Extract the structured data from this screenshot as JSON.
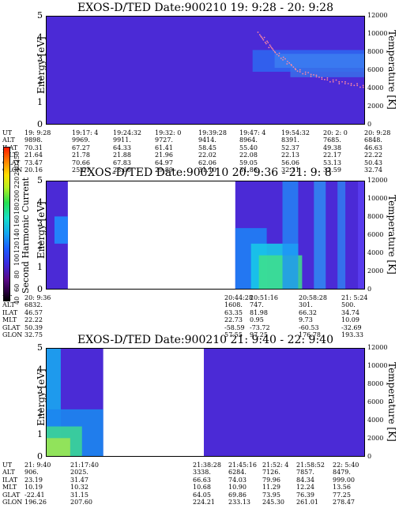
{
  "colorbar": {
    "label": "Second Harmonic Current",
    "ticks": [
      "40",
      "60",
      "80",
      "100",
      "120",
      "140",
      "160",
      "180",
      "200",
      "220",
      "240",
      "250"
    ]
  },
  "chart_data": [
    {
      "type": "heatmap",
      "title": "EXOS-D/TED   Date:900210  19: 9:28 - 20: 9:28",
      "ylabel": "Energy [eV]",
      "y2label": "Temperature [K]",
      "ylim": [
        0,
        5
      ],
      "y2lim": [
        0,
        12000
      ],
      "yticks": [
        "0",
        "1",
        "2",
        "3",
        "4",
        "5"
      ],
      "y2ticks": [
        "0",
        "2000",
        "4000",
        "6000",
        "8000",
        "10000",
        "12000"
      ],
      "ephem_rows": [
        "UT",
        "ALT",
        "ILAT",
        "MLT",
        "GLAT",
        "GLON"
      ],
      "ephem": [
        [
          "19: 9:28",
          "9898.",
          "70.31",
          "21.64",
          "73.47",
          "20.16"
        ],
        [
          "19:17: 4",
          "9969.",
          "67.27",
          "21.78",
          "70.66",
          "25.01"
        ],
        [
          "19:24:32",
          "9911.",
          "64.33",
          "21.88",
          "67.83",
          "28.00"
        ],
        [
          "19:32: 0",
          "9727.",
          "61.41",
          "21.96",
          "64.97",
          "29.89"
        ],
        [
          "19:39:28",
          "9414.",
          "58.45",
          "22.02",
          "62.06",
          "31.10"
        ],
        [
          "19:47: 4",
          "8964.",
          "55.40",
          "22.08",
          "59.05",
          "31.86"
        ],
        [
          "19:54:32",
          "8391.",
          "52.37",
          "22.13",
          "56.06",
          "32.31"
        ],
        [
          "20: 2: 0",
          "7685.",
          "49.38",
          "22.17",
          "53.13",
          "32.59"
        ],
        [
          "20: 9:28",
          "6848.",
          "46.63",
          "22.22",
          "50.43",
          "32.74"
        ]
      ]
    },
    {
      "type": "heatmap",
      "title": "EXOS-D/TED   Date:900210  20: 9:36 - 21: 9: 8",
      "ylabel": "Energy [eV]",
      "y2label": "Temperature [K]",
      "ylim": [
        0,
        5
      ],
      "y2lim": [
        0,
        12000
      ],
      "yticks": [
        "0",
        "1",
        "2",
        "3",
        "4",
        "5"
      ],
      "y2ticks": [
        "0",
        "2000",
        "4000",
        "6000",
        "8000",
        "10000",
        "12000"
      ],
      "ephem_rows": [
        "UT",
        "ALT",
        "ILAT",
        "MLT",
        "GLAT",
        "GLON"
      ],
      "ephem": [
        [
          "20: 9:36",
          "6832.",
          "46.57",
          "22.22",
          "50.39",
          "32.75"
        ],
        [
          "20:44:28",
          "1608.",
          "63.35",
          "22.73",
          "-58.59",
          "57.55"
        ],
        [
          "20:51:16",
          "747.",
          "81.98",
          "0.95",
          "-73.72",
          "97.25"
        ],
        [
          "20:58:28",
          "301.",
          "66.32",
          "9.73",
          "-60.53",
          "176.78"
        ],
        [
          "21: 5:24",
          "500.",
          "34.74",
          "10.09",
          "-32.69",
          "193.33"
        ]
      ]
    },
    {
      "type": "heatmap",
      "title": "EXOS-D/TED   Date:900210  21: 9:40 - 22: 9:40",
      "ylabel": "Energy [eV]",
      "y2label": "Temperature [K]",
      "ylim": [
        0,
        5
      ],
      "y2lim": [
        0,
        12000
      ],
      "yticks": [
        "0",
        "1",
        "2",
        "3",
        "4",
        "5"
      ],
      "y2ticks": [
        "0",
        "2000",
        "4000",
        "6000",
        "8000",
        "10000",
        "12000"
      ],
      "ephem_rows": [
        "UT",
        "ALT",
        "ILAT",
        "MLT",
        "GLAT",
        "GLON"
      ],
      "ephem": [
        [
          "21: 9:40",
          "906.",
          "23.19",
          "10.19",
          "-22.41",
          "196.26"
        ],
        [
          "21:17:40",
          "2025.",
          "31.47",
          "10.32",
          "31.15",
          "207.60"
        ],
        [
          "21:38:28",
          "3338.",
          "66.63",
          "10.68",
          "64.05",
          "224.21"
        ],
        [
          "21:45:16",
          "6284.",
          "74.03",
          "10.90",
          "69.86",
          "233.13"
        ],
        [
          "21:52: 4",
          "7126.",
          "79.96",
          "11.29",
          "73.95",
          "245.30"
        ],
        [
          "21:58:52",
          "7857.",
          "84.34",
          "12.24",
          "76.39",
          "261.01"
        ],
        [
          "22: 5:40",
          "8479.",
          "999.00",
          "13.56",
          "77.25",
          "278.47"
        ]
      ]
    }
  ]
}
